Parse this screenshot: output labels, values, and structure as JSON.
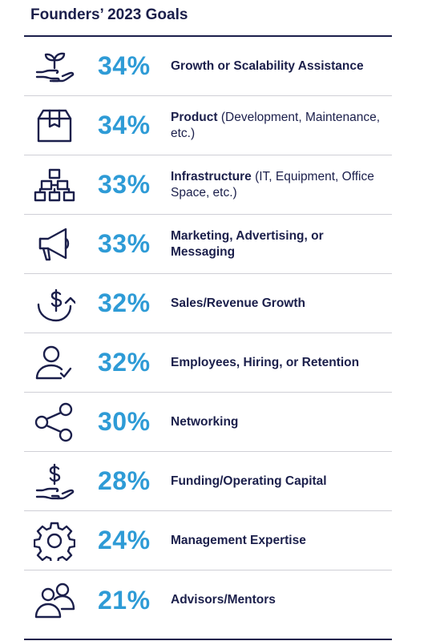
{
  "chart_data": {
    "type": "table",
    "title": "Founders’ 2023 Goals",
    "accent_color": "#2e9bd6",
    "text_color": "#1b1f4b",
    "rows": [
      {
        "percent": "34%",
        "value": 34,
        "label_bold": "Growth or Scalability Assistance",
        "label_regular": "",
        "icon": "plant-in-hand-icon"
      },
      {
        "percent": "34%",
        "value": 34,
        "label_bold": "Product",
        "label_regular": " (Development, Maintenance, etc.)",
        "icon": "box-icon"
      },
      {
        "percent": "33%",
        "value": 33,
        "label_bold": "Infrastructure",
        "label_regular": " (IT, Equipment, Office Space, etc.)",
        "icon": "network-hierarchy-icon"
      },
      {
        "percent": "33%",
        "value": 33,
        "label_bold": "Marketing, Advertising, or Messaging",
        "label_regular": "",
        "icon": "megaphone-icon"
      },
      {
        "percent": "32%",
        "value": 32,
        "label_bold": "Sales/Revenue Growth",
        "label_regular": "",
        "icon": "dollar-growth-icon"
      },
      {
        "percent": "32%",
        "value": 32,
        "label_bold": "Employees, Hiring, or Retention",
        "label_regular": "",
        "icon": "employee-check-icon"
      },
      {
        "percent": "30%",
        "value": 30,
        "label_bold": "Networking",
        "label_regular": "",
        "icon": "share-network-icon"
      },
      {
        "percent": "28%",
        "value": 28,
        "label_bold": "Funding/Operating Capital",
        "label_regular": "",
        "icon": "money-in-hand-icon"
      },
      {
        "percent": "24%",
        "value": 24,
        "label_bold": "Management Expertise",
        "label_regular": "",
        "icon": "gear-icon"
      },
      {
        "percent": "21%",
        "value": 21,
        "label_bold": "Advisors/Mentors",
        "label_regular": "",
        "icon": "people-icon"
      }
    ]
  }
}
